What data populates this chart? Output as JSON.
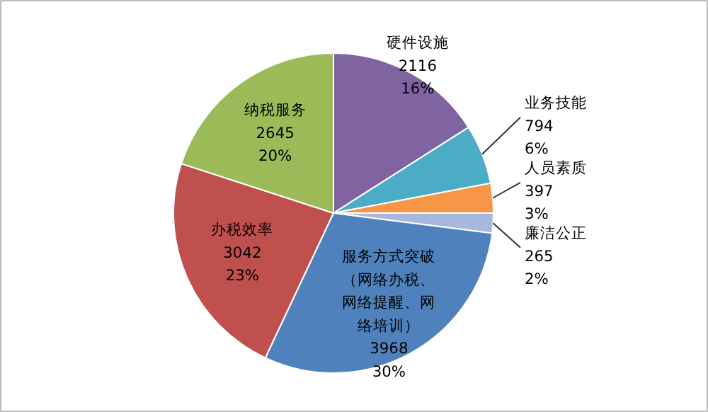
{
  "chart_data": {
    "type": "pie",
    "categories": [
      "硬件设施",
      "业务技能",
      "人员素质",
      "廉洁公正",
      "服务方式突破（网络办税、网络提醒、网络培训）",
      "办税效率",
      "纳税服务"
    ],
    "values": [
      2116,
      794,
      397,
      265,
      3968,
      3042,
      2645
    ],
    "value_labels": [
      "2116\n16%",
      "794\n6%",
      "397\n3%",
      "265\n2%",
      "3968\n30%",
      "3042\n23%",
      "2645\n20%"
    ],
    "colors": [
      "#8064a2",
      "#4bacc6",
      "#f79646",
      "#a6b9dc",
      "#4f81bd",
      "#c0504d",
      "#9bbb59"
    ]
  }
}
